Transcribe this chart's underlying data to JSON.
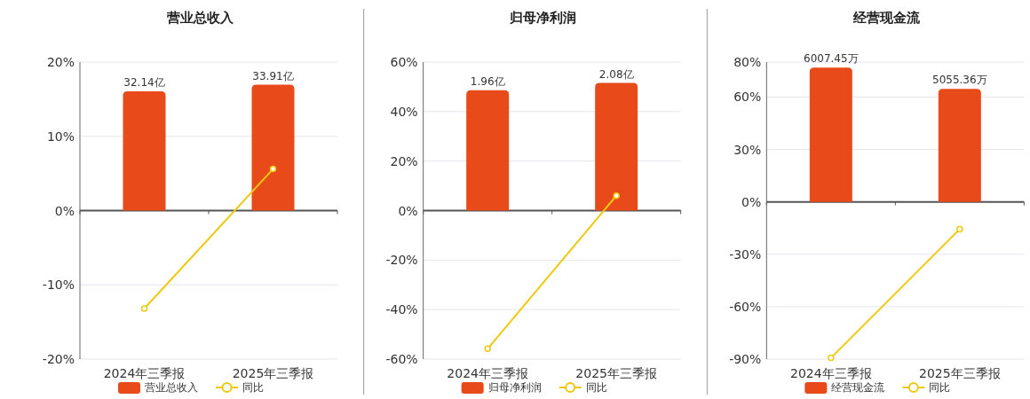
{
  "chart_data": [
    {
      "type": "bar",
      "title": "营业总收入",
      "categories": [
        "2024年三季报",
        "2025年三季报"
      ],
      "series": [
        {
          "name": "营业总收入",
          "color": "#e84a1a",
          "values": [
            32.14,
            33.91
          ],
          "axis": "y2",
          "value_labels": [
            "32.14亿",
            "33.91亿"
          ]
        },
        {
          "name": "同比",
          "type": "line",
          "color": "#f0c80e",
          "values": [
            -13.2,
            5.6
          ],
          "marker": "circle"
        }
      ],
      "ylim": [
        -20,
        20
      ],
      "yticks": [
        {
          "value": -20,
          "label": "-20%"
        },
        {
          "value": -10,
          "label": "-10%"
        },
        {
          "value": 0,
          "label": "0%"
        },
        {
          "value": 10,
          "label": "10%"
        },
        {
          "value": 20,
          "label": "20%"
        }
      ],
      "y2lim": [
        -40,
        40
      ],
      "grid": "y",
      "legend": "bottom"
    },
    {
      "type": "bar",
      "title": "归母净利润",
      "categories": [
        "2024年三季报",
        "2025年三季报"
      ],
      "series": [
        {
          "name": "归母净利润",
          "color": "#e84a1a",
          "values": [
            1.96,
            2.08
          ],
          "axis": "y2",
          "value_labels": [
            "1.96亿",
            "2.08亿"
          ]
        },
        {
          "name": "同比",
          "type": "line",
          "color": "#f0c80e",
          "values": [
            -55.8,
            6.0
          ],
          "marker": "circle"
        }
      ],
      "ylim": [
        -60,
        60
      ],
      "yticks": [
        {
          "value": -60,
          "label": "-60%"
        },
        {
          "value": -40,
          "label": "-40%"
        },
        {
          "value": -20,
          "label": "-20%"
        },
        {
          "value": 0,
          "label": "0%"
        },
        {
          "value": 20,
          "label": "20%"
        },
        {
          "value": 40,
          "label": "40%"
        },
        {
          "value": 60,
          "label": "60%"
        }
      ],
      "y2lim": [
        -2.42,
        2.42
      ],
      "grid": "y",
      "legend": "bottom"
    },
    {
      "type": "bar",
      "title": "经营现金流",
      "categories": [
        "2024年三季报",
        "2025年三季报"
      ],
      "series": [
        {
          "name": "经营现金流",
          "color": "#e84a1a",
          "values": [
            6007.45,
            5055.36
          ],
          "axis": "y2",
          "value_labels": [
            "6007.45万",
            "5055.36万"
          ]
        },
        {
          "name": "同比",
          "type": "line",
          "color": "#f0c80e",
          "values": [
            -89.3,
            -15.6
          ],
          "marker": "circle"
        }
      ],
      "ylim": [
        -90,
        80
      ],
      "yticks": [
        {
          "value": -90,
          "label": "-90%"
        },
        {
          "value": -60,
          "label": "-60%"
        },
        {
          "value": -30,
          "label": "-30%"
        },
        {
          "value": 0,
          "label": "0%"
        },
        {
          "value": 30,
          "label": "30%"
        },
        {
          "value": 60,
          "label": "60%"
        },
        {
          "value": 80,
          "label": "80%"
        }
      ],
      "y2lim": [
        -7040,
        6258
      ],
      "grid": "y",
      "legend": "bottom"
    }
  ]
}
